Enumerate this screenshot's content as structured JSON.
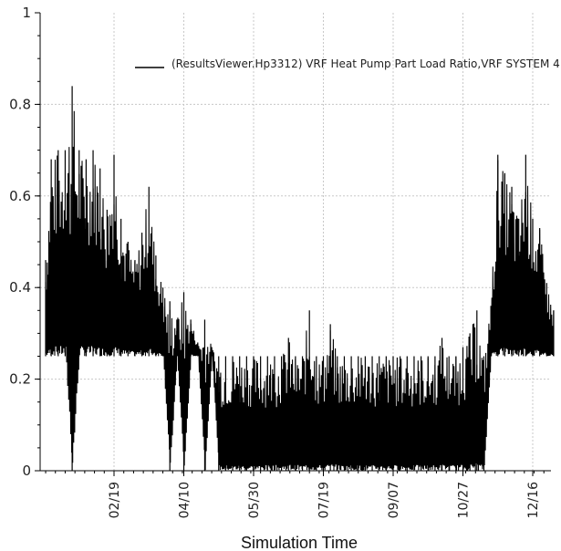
{
  "chart_data": {
    "type": "line",
    "title": "",
    "xlabel": "Simulation Time",
    "ylabel": "",
    "ylim": [
      0,
      1
    ],
    "yticks": [
      "0",
      "0.2",
      "0.4",
      "0.6",
      "0.8",
      "1"
    ],
    "xticks": [
      "02/19",
      "04/10",
      "05/30",
      "07/19",
      "09/07",
      "10/27",
      "12/16"
    ],
    "grid": true,
    "legend_position": "top-right",
    "series": [
      {
        "name": "(ResultsViewer.Hp3312) VRF Heat Pump Part Load Ratio,VRF SYSTEM 4",
        "color": "#000000",
        "x": [
          "01/01",
          "01/05",
          "01/10",
          "01/15",
          "01/20",
          "01/25",
          "01/30",
          "02/04",
          "02/09",
          "02/14",
          "02/19",
          "02/24",
          "03/01",
          "03/06",
          "03/11",
          "03/16",
          "03/21",
          "03/26",
          "03/31",
          "04/05",
          "04/10",
          "04/15",
          "04/20",
          "04/25",
          "04/30",
          "05/05",
          "05/10",
          "05/15",
          "05/20",
          "05/25",
          "05/30",
          "06/04",
          "06/09",
          "06/14",
          "06/19",
          "06/24",
          "06/29",
          "07/04",
          "07/09",
          "07/14",
          "07/19",
          "07/24",
          "07/29",
          "08/03",
          "08/08",
          "08/13",
          "08/18",
          "08/23",
          "08/28",
          "09/02",
          "09/07",
          "09/12",
          "09/17",
          "09/22",
          "09/27",
          "10/02",
          "10/07",
          "10/12",
          "10/17",
          "10/22",
          "10/27",
          "11/01",
          "11/06",
          "11/11",
          "11/16",
          "11/21",
          "11/26",
          "12/01",
          "12/06",
          "12/11",
          "12/16",
          "12/21",
          "12/26",
          "12/31"
        ],
        "high": [
          0.46,
          0.68,
          0.7,
          0.7,
          0.84,
          0.7,
          0.68,
          0.7,
          0.66,
          0.57,
          0.69,
          0.55,
          0.5,
          0.46,
          0.52,
          0.62,
          0.47,
          0.4,
          0.37,
          0.33,
          0.39,
          0.33,
          0.28,
          0.33,
          0.27,
          0.25,
          0.25,
          0.25,
          0.25,
          0.25,
          0.25,
          0.25,
          0.25,
          0.25,
          0.25,
          0.29,
          0.25,
          0.25,
          0.35,
          0.25,
          0.25,
          0.32,
          0.25,
          0.25,
          0.25,
          0.25,
          0.25,
          0.25,
          0.25,
          0.25,
          0.25,
          0.25,
          0.25,
          0.25,
          0.25,
          0.25,
          0.25,
          0.29,
          0.25,
          0.25,
          0.27,
          0.3,
          0.35,
          0.25,
          0.36,
          0.69,
          0.65,
          0.62,
          0.55,
          0.69,
          0.55,
          0.53,
          0.41,
          0.35
        ],
        "low": [
          0.25,
          0.25,
          0.25,
          0.25,
          0.0,
          0.25,
          0.25,
          0.25,
          0.25,
          0.25,
          0.25,
          0.25,
          0.25,
          0.25,
          0.25,
          0.25,
          0.25,
          0.25,
          0.0,
          0.25,
          0.0,
          0.25,
          0.25,
          0.0,
          0.25,
          0.0,
          0.0,
          0.0,
          0.0,
          0.0,
          0.0,
          0.0,
          0.0,
          0.0,
          0.0,
          0.0,
          0.0,
          0.0,
          0.0,
          0.0,
          0.0,
          0.0,
          0.0,
          0.0,
          0.0,
          0.0,
          0.0,
          0.0,
          0.0,
          0.0,
          0.0,
          0.0,
          0.0,
          0.0,
          0.0,
          0.0,
          0.0,
          0.0,
          0.0,
          0.0,
          0.0,
          0.0,
          0.0,
          0.0,
          0.25,
          0.25,
          0.25,
          0.25,
          0.25,
          0.25,
          0.25,
          0.25,
          0.25,
          0.25
        ]
      }
    ]
  }
}
